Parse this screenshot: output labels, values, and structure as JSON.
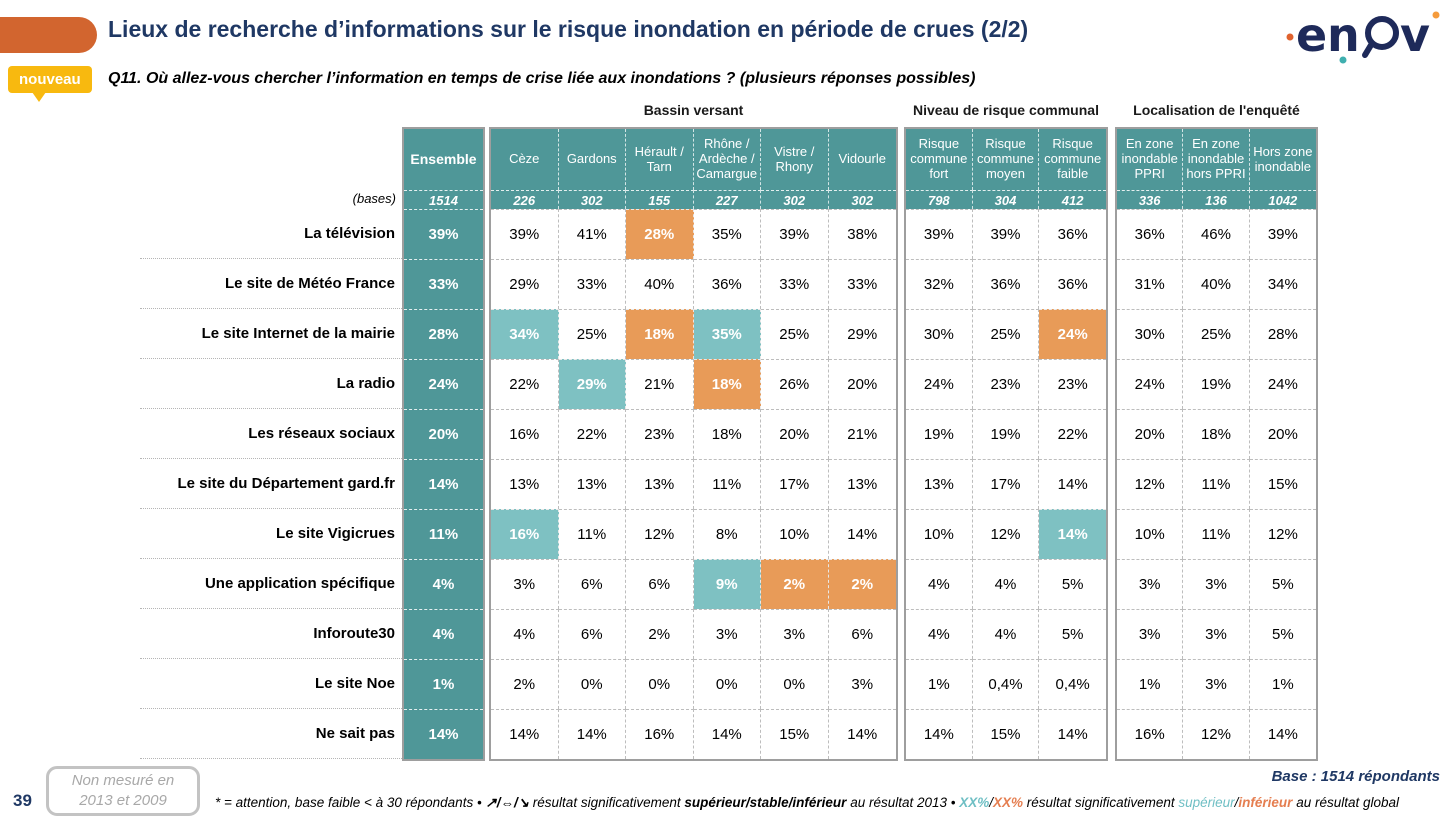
{
  "header": {
    "title": "Lieux de recherche d’informations sur le risque inondation en période de crues (2/2)",
    "badge": "nouveau",
    "question": "Q11. Où allez-vous chercher l’information en temps de crise liée aux inondations ? (plusieurs réponses possibles)",
    "logo_text": "enov"
  },
  "colors": {
    "teal_header": "#4F9798",
    "highlight_high": "#7EC1C2",
    "highlight_low": "#E89B58",
    "accent_orange": "#D2652F",
    "badge_yellow": "#F8B90F",
    "navy": "#1F3864"
  },
  "chart_data": {
    "type": "table",
    "title": "Lieux de recherche d’informations sur le risque inondation en période de crues (2/2)",
    "subtitle": "Q11. Où allez-vous chercher l’information en temps de crise liée aux inondations ? (plusieurs réponses possibles)",
    "bases_label": "(bases)",
    "highlight_legend": {
      "hi": "significativement supérieur au résultat global",
      "lo": "significativement inférieur au résultat global"
    },
    "groups": [
      {
        "label": "",
        "columns": [
          {
            "name": "Ensemble",
            "base": "1514"
          }
        ]
      },
      {
        "label": "Bassin versant",
        "columns": [
          {
            "name": "Cèze",
            "base": "226"
          },
          {
            "name": "Gardons",
            "base": "302"
          },
          {
            "name": "Hérault / Tarn",
            "base": "155"
          },
          {
            "name": "Rhône / Ardèche / Camargue",
            "base": "227"
          },
          {
            "name": "Vistre / Rhony",
            "base": "302"
          },
          {
            "name": "Vidourle",
            "base": "302"
          }
        ]
      },
      {
        "label": "Niveau de risque communal",
        "columns": [
          {
            "name": "Risque commune fort",
            "base": "798"
          },
          {
            "name": "Risque commune moyen",
            "base": "304"
          },
          {
            "name": "Risque commune faible",
            "base": "412"
          }
        ]
      },
      {
        "label": "Localisation de l'enquêté",
        "columns": [
          {
            "name": "En zone inondable PPRI",
            "base": "336"
          },
          {
            "name": "En zone inondable hors PPRI",
            "base": "136"
          },
          {
            "name": "Hors zone inondable",
            "base": "1042"
          }
        ]
      }
    ],
    "rows": [
      {
        "label": "La télévision",
        "values": [
          "39%",
          "39%",
          "41%",
          "28%",
          "35%",
          "39%",
          "38%",
          "39%",
          "39%",
          "36%",
          "36%",
          "46%",
          "39%"
        ],
        "styles": [
          "",
          "",
          "",
          "lo",
          "",
          "",
          "",
          "",
          "",
          "",
          "",
          "",
          ""
        ]
      },
      {
        "label": "Le site de Météo France",
        "values": [
          "33%",
          "29%",
          "33%",
          "40%",
          "36%",
          "33%",
          "33%",
          "32%",
          "36%",
          "36%",
          "31%",
          "40%",
          "34%"
        ],
        "styles": [
          "",
          "",
          "",
          "",
          "",
          "",
          "",
          "",
          "",
          "",
          "",
          "",
          ""
        ]
      },
      {
        "label": "Le site Internet de la mairie",
        "values": [
          "28%",
          "34%",
          "25%",
          "18%",
          "35%",
          "25%",
          "29%",
          "30%",
          "25%",
          "24%",
          "30%",
          "25%",
          "28%"
        ],
        "styles": [
          "",
          "hi",
          "",
          "lo",
          "hi",
          "",
          "",
          "",
          "",
          "lo",
          "",
          "",
          ""
        ]
      },
      {
        "label": "La radio",
        "values": [
          "24%",
          "22%",
          "29%",
          "21%",
          "18%",
          "26%",
          "20%",
          "24%",
          "23%",
          "23%",
          "24%",
          "19%",
          "24%"
        ],
        "styles": [
          "",
          "",
          "hi",
          "",
          "lo",
          "",
          "",
          "",
          "",
          "",
          "",
          "",
          ""
        ]
      },
      {
        "label": "Les réseaux sociaux",
        "values": [
          "20%",
          "16%",
          "22%",
          "23%",
          "18%",
          "20%",
          "21%",
          "19%",
          "19%",
          "22%",
          "20%",
          "18%",
          "20%"
        ],
        "styles": [
          "",
          "",
          "",
          "",
          "",
          "",
          "",
          "",
          "",
          "",
          "",
          "",
          ""
        ]
      },
      {
        "label": "Le site du Département gard.fr",
        "values": [
          "14%",
          "13%",
          "13%",
          "13%",
          "11%",
          "17%",
          "13%",
          "13%",
          "17%",
          "14%",
          "12%",
          "11%",
          "15%"
        ],
        "styles": [
          "",
          "",
          "",
          "",
          "",
          "",
          "",
          "",
          "",
          "",
          "",
          "",
          ""
        ]
      },
      {
        "label": "Le site Vigicrues",
        "values": [
          "11%",
          "16%",
          "11%",
          "12%",
          "8%",
          "10%",
          "14%",
          "10%",
          "12%",
          "14%",
          "10%",
          "11%",
          "12%"
        ],
        "styles": [
          "",
          "hi",
          "",
          "",
          "",
          "",
          "",
          "",
          "",
          "hi",
          "",
          "",
          ""
        ]
      },
      {
        "label": "Une application spécifique",
        "values": [
          "4%",
          "3%",
          "6%",
          "6%",
          "9%",
          "2%",
          "2%",
          "4%",
          "4%",
          "5%",
          "3%",
          "3%",
          "5%"
        ],
        "styles": [
          "",
          "",
          "",
          "",
          "hi",
          "lo",
          "lo",
          "",
          "",
          "",
          "",
          "",
          ""
        ]
      },
      {
        "label": "Inforoute30",
        "values": [
          "4%",
          "4%",
          "6%",
          "2%",
          "3%",
          "3%",
          "6%",
          "4%",
          "4%",
          "5%",
          "3%",
          "3%",
          "5%"
        ],
        "styles": [
          "",
          "",
          "",
          "",
          "",
          "",
          "",
          "",
          "",
          "",
          "",
          "",
          ""
        ]
      },
      {
        "label": "Le site Noe",
        "values": [
          "1%",
          "2%",
          "0%",
          "0%",
          "0%",
          "0%",
          "3%",
          "1%",
          "0,4%",
          "0,4%",
          "1%",
          "3%",
          "1%"
        ],
        "styles": [
          "",
          "",
          "",
          "",
          "",
          "",
          "",
          "",
          "",
          "",
          "",
          "",
          ""
        ]
      },
      {
        "label": "Ne sait pas",
        "values": [
          "14%",
          "14%",
          "14%",
          "16%",
          "14%",
          "15%",
          "14%",
          "14%",
          "15%",
          "14%",
          "16%",
          "12%",
          "14%"
        ],
        "styles": [
          "",
          "",
          "",
          "",
          "",
          "",
          "",
          "",
          "",
          "",
          "",
          "",
          ""
        ]
      }
    ]
  },
  "footer": {
    "page_number": "39",
    "note_box_line1": "Non mesuré en",
    "note_box_line2": "2013 et 2009",
    "base_note": "Base : 1514 répondants",
    "footnote": [
      {
        "t": "* = attention, base faible < à 30 répondants • ",
        "c": "k",
        "b": false
      },
      {
        "t": "↗/⇔/↘",
        "c": "k",
        "b": true
      },
      {
        "t": " résultat significativement ",
        "c": "k",
        "b": false
      },
      {
        "t": "supérieur/stable/inférieur",
        "c": "k",
        "b": true
      },
      {
        "t": " au résultat 2013 • ",
        "c": "k",
        "b": false
      },
      {
        "t": "XX%",
        "c": "t",
        "b": true
      },
      {
        "t": "/",
        "c": "k",
        "b": false
      },
      {
        "t": "XX%",
        "c": "o",
        "b": true
      },
      {
        "t": " résultat significativement ",
        "c": "k",
        "b": false
      },
      {
        "t": "supérieur",
        "c": "t",
        "b": false
      },
      {
        "t": "/",
        "c": "k",
        "b": false
      },
      {
        "t": "inférieur",
        "c": "o",
        "b": true
      },
      {
        "t": " au résultat global",
        "c": "k",
        "b": false
      }
    ]
  }
}
